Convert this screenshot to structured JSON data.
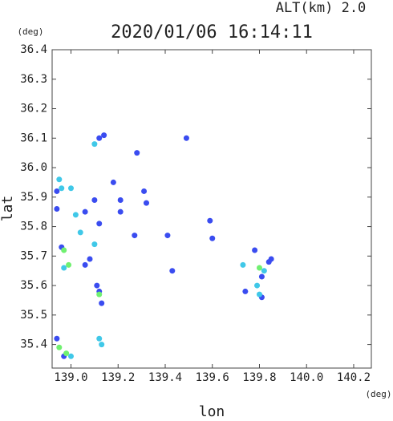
{
  "chart_data": {
    "type": "scatter",
    "title": "2020/01/06 16:14:11",
    "subtitle": "ALT(km) 2.0",
    "x_unit": "(deg)",
    "y_unit": "(deg)",
    "x_label": "lon",
    "y_label": "lat",
    "xlim": [
      138.92,
      140.275
    ],
    "ylim": [
      35.32,
      36.4
    ],
    "xticks": [
      {
        "value": 139.0,
        "label": "139.0"
      },
      139.2,
      139.4,
      139.6,
      139.8,
      {
        "value": 140.0,
        "label": "140.0"
      },
      140.2
    ],
    "yticks": [
      35.4,
      35.5,
      35.6,
      35.7,
      35.8,
      35.9,
      {
        "value": 36.0,
        "label": "36.0"
      },
      36.1,
      36.2,
      36.3,
      36.4
    ],
    "series": [
      {
        "color": "#3a4cf0",
        "x": [
          139.14,
          139.12,
          139.49,
          139.28,
          139.18,
          139.31,
          139.21,
          139.32,
          139.59,
          139.12,
          139.27,
          139.41,
          139.6,
          139.78,
          139.43,
          139.06,
          138.94,
          138.94,
          138.96,
          139.11,
          139.12,
          139.13,
          138.94,
          138.97,
          139.84,
          139.85,
          139.81,
          139.74,
          139.81,
          139.06,
          139.1,
          139.21,
          139.08
        ],
        "values": [
          36.11,
          36.1,
          36.1,
          36.05,
          35.95,
          35.92,
          35.89,
          35.88,
          35.82,
          35.81,
          35.77,
          35.77,
          35.76,
          35.72,
          35.65,
          35.67,
          35.92,
          35.86,
          35.73,
          35.6,
          35.58,
          35.54,
          35.42,
          35.36,
          35.68,
          35.69,
          35.63,
          35.58,
          35.56,
          35.85,
          35.89,
          35.85,
          35.69
        ]
      },
      {
        "color": "#40c8e8",
        "x": [
          139.1,
          138.95,
          139.12,
          139.13,
          139.02,
          139.04,
          139.1,
          138.97,
          139.73,
          139.82,
          139.79,
          139.8,
          139.0,
          139.0,
          138.96
        ],
        "values": [
          36.08,
          35.96,
          35.42,
          35.4,
          35.84,
          35.78,
          35.74,
          35.66,
          35.67,
          35.65,
          35.6,
          35.57,
          35.93,
          35.36,
          35.93
        ]
      },
      {
        "color": "#70f070",
        "x": [
          138.97,
          138.99,
          138.95,
          138.98,
          139.8,
          139.12
        ],
        "values": [
          35.72,
          35.67,
          35.39,
          35.37,
          35.66,
          35.57
        ]
      }
    ]
  }
}
